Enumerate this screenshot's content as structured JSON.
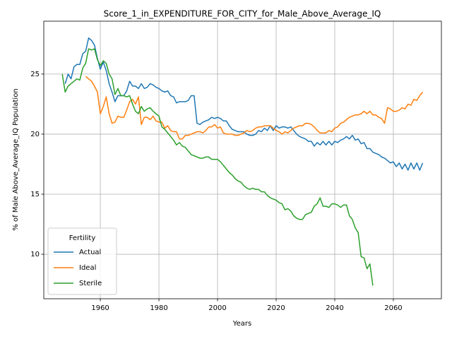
{
  "chart_data": {
    "type": "line",
    "title": "Score_1_in_EXPENDITURE_FOR_CITY_for_Male_Above_Average_IQ",
    "x_label": "Years",
    "y_label": "% of Male Above_Average_IQ Population",
    "legend_title": "Fertility",
    "legend": "lower left",
    "grid": true,
    "xlim": [
      1940.7,
      2076.4
    ],
    "ylim": [
      6.3,
      29.4
    ],
    "xticks": [
      1960,
      1980,
      2000,
      2020,
      2040,
      2060
    ],
    "yticks": [
      10,
      15,
      20,
      25
    ],
    "x": [
      1947,
      1948,
      1949,
      1950,
      1951,
      1952,
      1953,
      1954,
      1955,
      1956,
      1957,
      1958,
      1959,
      1960,
      1961,
      1962,
      1963,
      1964,
      1965,
      1966,
      1967,
      1968,
      1969,
      1970,
      1971,
      1972,
      1973,
      1974,
      1975,
      1976,
      1977,
      1978,
      1979,
      1980,
      1981,
      1982,
      1983,
      1984,
      1985,
      1986,
      1987,
      1988,
      1989,
      1990,
      1991,
      1992,
      1993,
      1994,
      1995,
      1996,
      1997,
      1998,
      1999,
      2000,
      2001,
      2002,
      2003,
      2004,
      2005,
      2006,
      2007,
      2008,
      2009,
      2010,
      2011,
      2012,
      2013,
      2014,
      2015,
      2016,
      2017,
      2018,
      2019,
      2020,
      2021,
      2022,
      2023,
      2024,
      2025,
      2026,
      2027,
      2028,
      2029,
      2030,
      2031,
      2032,
      2033,
      2034,
      2035,
      2036,
      2037,
      2038,
      2039,
      2040,
      2041,
      2042,
      2043,
      2044,
      2045,
      2046,
      2047,
      2048,
      2049,
      2050,
      2051,
      2052,
      2053,
      2054,
      2055,
      2056,
      2057,
      2058,
      2059,
      2060,
      2061,
      2062,
      2063,
      2064,
      2065,
      2066,
      2067,
      2068,
      2069,
      2070
    ],
    "series": [
      {
        "name": "Actual",
        "color": "#1f77b4",
        "values": [
          null,
          24.2,
          25.0,
          24.6,
          25.6,
          25.8,
          25.8,
          26.7,
          26.9,
          28.0,
          27.8,
          27.4,
          26.3,
          25.4,
          26.0,
          25.3,
          24.2,
          23.5,
          22.7,
          23.2,
          23.2,
          23.2,
          23.6,
          24.4,
          24.0,
          24.0,
          23.8,
          24.2,
          23.8,
          23.9,
          24.2,
          24.1,
          23.9,
          23.8,
          23.6,
          23.5,
          23.6,
          23.2,
          23.1,
          22.6,
          22.7,
          22.7,
          22.7,
          22.8,
          23.2,
          23.2,
          20.9,
          20.8,
          21.0,
          21.1,
          21.2,
          21.4,
          21.3,
          21.4,
          21.3,
          21.1,
          21.1,
          20.7,
          20.4,
          20.3,
          20.2,
          20.2,
          20.2,
          20.0,
          19.9,
          19.9,
          20.0,
          20.3,
          20.2,
          20.5,
          20.3,
          20.7,
          20.3,
          20.7,
          20.5,
          20.6,
          20.6,
          20.5,
          20.6,
          20.3,
          20.0,
          19.8,
          19.7,
          19.6,
          19.4,
          19.4,
          19.0,
          19.3,
          19.1,
          19.4,
          19.1,
          19.4,
          19.1,
          19.4,
          19.3,
          19.5,
          19.6,
          19.8,
          19.6,
          19.9,
          19.5,
          19.6,
          19.2,
          19.3,
          18.8,
          18.8,
          18.5,
          18.4,
          18.3,
          18.1,
          18.0,
          17.8,
          17.6,
          17.7,
          17.3,
          17.6,
          17.1,
          17.5,
          17.0,
          17.6,
          17.1,
          17.6,
          17.0,
          17.6
        ]
      },
      {
        "name": "Ideal",
        "color": "#ff7f0e",
        "values": [
          null,
          null,
          null,
          null,
          null,
          null,
          null,
          null,
          24.8,
          24.6,
          24.4,
          24.0,
          23.5,
          21.7,
          22.3,
          23.1,
          21.7,
          20.9,
          21.0,
          21.5,
          21.4,
          21.4,
          22.0,
          22.7,
          22.9,
          22.5,
          23.1,
          20.8,
          21.4,
          21.4,
          21.2,
          21.5,
          21.1,
          21.0,
          21.0,
          20.5,
          20.7,
          20.3,
          20.2,
          20.2,
          19.6,
          19.6,
          19.9,
          19.9,
          20.0,
          20.1,
          20.2,
          20.2,
          20.1,
          20.3,
          20.6,
          20.6,
          20.8,
          20.5,
          20.6,
          20.1,
          20.0,
          20.0,
          20.0,
          19.9,
          19.9,
          20.0,
          20.1,
          20.3,
          20.2,
          20.3,
          20.5,
          20.6,
          20.6,
          20.7,
          20.7,
          20.7,
          20.5,
          20.3,
          20.2,
          20.0,
          20.2,
          20.1,
          20.3,
          20.5,
          20.6,
          20.7,
          20.7,
          20.9,
          20.9,
          20.8,
          20.6,
          20.3,
          20.1,
          20.1,
          20.1,
          20.3,
          20.2,
          20.5,
          20.6,
          20.9,
          21.0,
          21.2,
          21.4,
          21.5,
          21.6,
          21.6,
          21.7,
          21.9,
          21.7,
          21.9,
          21.6,
          21.6,
          21.4,
          21.3,
          20.9,
          22.2,
          22.1,
          21.9,
          21.9,
          22.0,
          22.2,
          22.1,
          22.5,
          22.4,
          22.9,
          22.8,
          23.2,
          23.5
        ]
      },
      {
        "name": "Sterile",
        "color": "#2ca02c",
        "values": [
          25.0,
          23.5,
          24.0,
          24.2,
          24.4,
          24.6,
          24.5,
          25.5,
          25.9,
          27.1,
          27.0,
          27.1,
          26.2,
          25.7,
          26.1,
          25.9,
          25.0,
          24.6,
          23.3,
          23.8,
          23.2,
          23.2,
          23.1,
          23.2,
          22.5,
          21.9,
          21.7,
          22.3,
          21.9,
          22.1,
          22.2,
          21.9,
          21.7,
          21.5,
          20.6,
          20.4,
          20.1,
          19.8,
          19.5,
          19.1,
          19.3,
          19.0,
          18.9,
          18.6,
          18.3,
          18.2,
          18.1,
          18.0,
          18.0,
          18.1,
          18.1,
          17.9,
          17.9,
          17.9,
          17.7,
          17.4,
          17.1,
          16.8,
          16.6,
          16.3,
          16.1,
          16.0,
          15.7,
          15.5,
          15.4,
          15.5,
          15.4,
          15.4,
          15.2,
          15.2,
          14.9,
          14.7,
          14.6,
          14.5,
          14.3,
          14.2,
          13.7,
          13.8,
          13.6,
          13.2,
          13.0,
          12.9,
          12.9,
          13.3,
          13.4,
          13.5,
          14.0,
          14.2,
          14.7,
          14.0,
          14.0,
          13.9,
          14.2,
          14.2,
          14.1,
          13.9,
          14.1,
          14.1,
          13.2,
          12.9,
          12.2,
          11.8,
          9.8,
          9.7,
          8.8,
          9.2,
          7.4,
          null,
          null,
          null,
          null,
          null,
          null,
          null,
          null,
          null,
          null,
          null,
          null,
          null,
          null,
          null,
          null,
          null
        ]
      }
    ]
  }
}
